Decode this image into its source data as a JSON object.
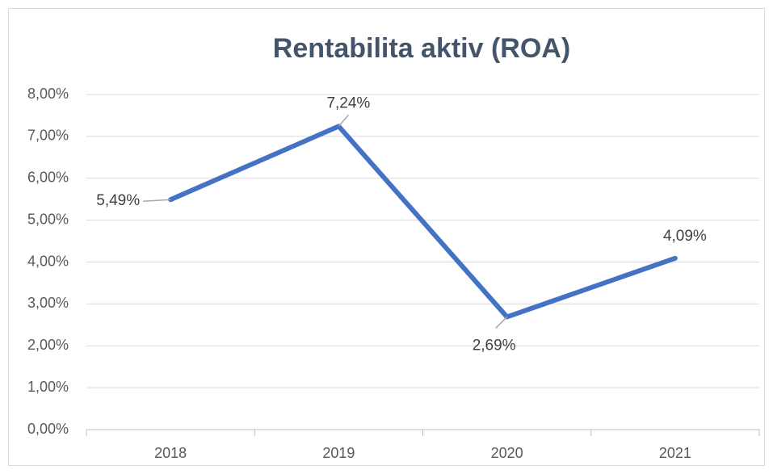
{
  "chart_data": {
    "type": "line",
    "title": "Rentabilita aktiv (ROA)",
    "categories": [
      "2018",
      "2019",
      "2020",
      "2021"
    ],
    "values": [
      5.49,
      7.24,
      2.69,
      4.09
    ],
    "value_labels": [
      "5,49%",
      "7,24%",
      "2,69%",
      "4,09%"
    ],
    "color": "#4472c4",
    "ylim": [
      0,
      8
    ],
    "yticks": [
      {
        "value": 0,
        "label": "0,00%"
      },
      {
        "value": 1,
        "label": "1,00%"
      },
      {
        "value": 2,
        "label": "2,00%"
      },
      {
        "value": 3,
        "label": "3,00%"
      },
      {
        "value": 4,
        "label": "4,00%"
      },
      {
        "value": 5,
        "label": "5,00%"
      },
      {
        "value": 6,
        "label": "6,00%"
      },
      {
        "value": 7,
        "label": "7,00%"
      },
      {
        "value": 8,
        "label": "8,00%"
      }
    ],
    "grid": true
  }
}
